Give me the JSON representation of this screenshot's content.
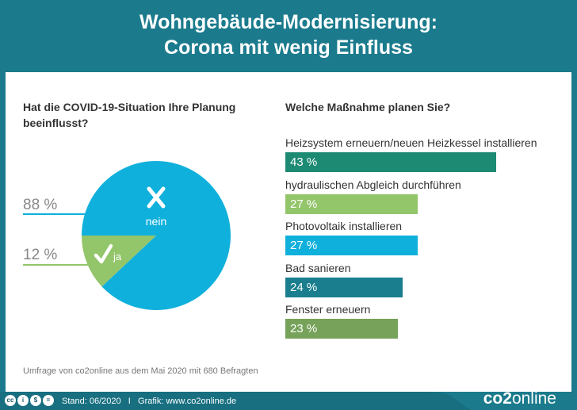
{
  "title_line1": "Wohngebäude-Modernisierung:",
  "title_line2": "Corona mit wenig Einfluss",
  "source": "Umfrage von co2online aus dem Mai 2020 mit 680 Befragten",
  "footer": {
    "text": "Stand: 06/2020   I   Grafik: www.co2online.de",
    "logo_a": "co2",
    "logo_b": "online",
    "license_icons": [
      "cc-icon",
      "by-icon",
      "nc-icon",
      "nd-icon"
    ]
  },
  "chart_data": [
    {
      "type": "pie",
      "title": "Hat die COVID-19-Situation Ihre Planung beeinflusst?",
      "slices": [
        {
          "name": "nein",
          "value": 88,
          "label": "88 %",
          "color": "#10b0dc",
          "icon": "x-icon"
        },
        {
          "name": "ja",
          "value": 12,
          "label": "12 %",
          "color": "#93c56b",
          "icon": "check-icon"
        }
      ]
    },
    {
      "type": "bar",
      "orientation": "horizontal",
      "title": "Welche Maßnahme planen Sie?",
      "categories": [
        "Heizsystem erneuern/neuen Heizkessel installieren",
        "hydraulischen Abgleich durchführen",
        "Photovoltaik installieren",
        "Bad sanieren",
        "Fenster erneuern"
      ],
      "values": [
        43,
        27,
        27,
        24,
        23
      ],
      "labels": [
        "43 %",
        "27 %",
        "27 %",
        "24 %",
        "23 %"
      ],
      "colors": [
        "#1d8a73",
        "#93c56b",
        "#10b0dc",
        "#1a7e8e",
        "#76a25a"
      ]
    }
  ]
}
